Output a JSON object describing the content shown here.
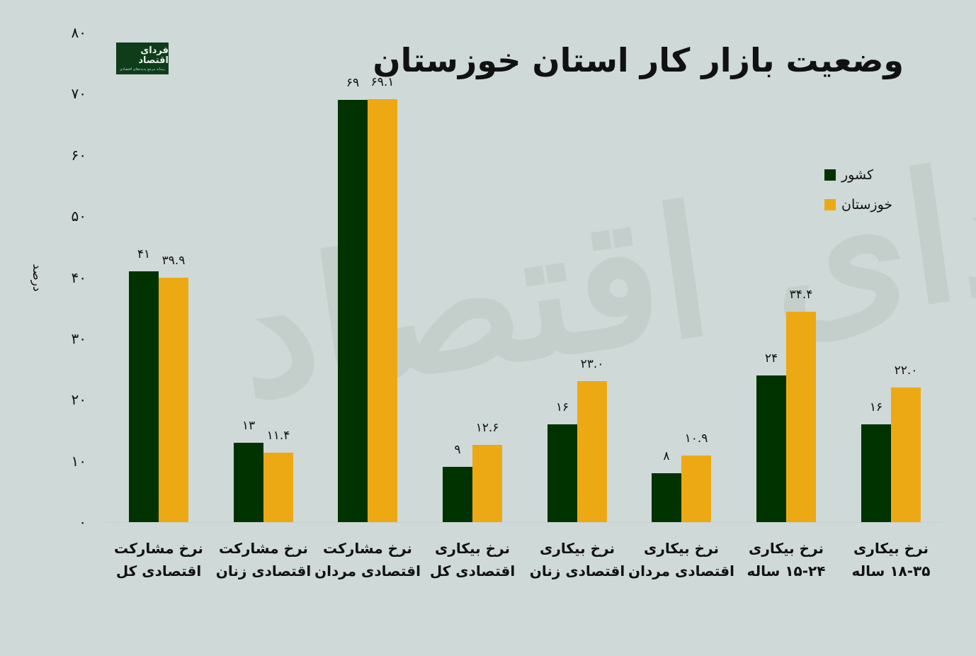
{
  "title": "وضعیت بازار کار استان خوزستان",
  "logo": {
    "name": "فردای اقتصاد",
    "tagline": "رسانه مرجع پدیده‌های اقتصادی"
  },
  "watermark": "فردای اقتصاد",
  "colors": {
    "background": "#cfd9d8",
    "country": "#003300",
    "khuzestan": "#eda913"
  },
  "chart_data": {
    "type": "bar",
    "title": "وضعیت بازار کار استان خوزستان",
    "xlabel": "",
    "ylabel": "درصد",
    "ylim": [
      0,
      80
    ],
    "yticks": [
      "۰",
      "۱۰",
      "۲۰",
      "۳۰",
      "۴۰",
      "۵۰",
      "۶۰",
      "۷۰",
      "۸۰"
    ],
    "grid": false,
    "legend_position": "top-right",
    "categories": [
      [
        "نرخ مشارکت",
        "اقتصادی کل"
      ],
      [
        "نرخ مشارکت",
        "اقتصادی زنان"
      ],
      [
        "نرخ مشارکت",
        "اقتصادی مردان"
      ],
      [
        "نرخ بیکاری",
        "اقتصادی کل"
      ],
      [
        "نرخ بیکاری",
        "اقتصادی زنان"
      ],
      [
        "نرخ بیکاری",
        "اقتصادی مردان"
      ],
      [
        "نرخ بیکاری",
        "۱۵-۲۴ ساله"
      ],
      [
        "نرخ بیکاری",
        "۱۸-۳۵ ساله"
      ]
    ],
    "series": [
      {
        "name": "کشور",
        "color": "#003300",
        "values": [
          41,
          13,
          69,
          9,
          16,
          8,
          24,
          16
        ],
        "labels": [
          "۴۱",
          "۱۳",
          "۶۹",
          "۹",
          "۱۶",
          "۸",
          "۲۴",
          "۱۶"
        ]
      },
      {
        "name": "خوزستان",
        "color": "#eda913",
        "values": [
          39.9,
          11.4,
          69.1,
          12.6,
          23.0,
          10.9,
          34.4,
          22.0
        ],
        "labels": [
          "۳۹.۹",
          "۱۱.۴",
          "۶۹.۱",
          "۱۲.۶",
          "۲۳.۰",
          "۱۰.۹",
          "۳۴.۴",
          "۲۲.۰"
        ]
      }
    ]
  }
}
